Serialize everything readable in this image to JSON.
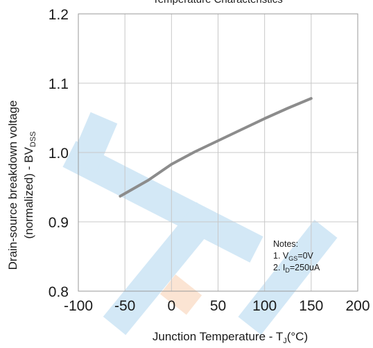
{
  "chart_data": {
    "type": "line",
    "title": "Temperature Characteristics",
    "xlabel": {
      "main": "Junction Temperature - T",
      "sub": "J",
      "suffix": "(°C)"
    },
    "ylabel": {
      "line1": "Drain-source breakdown voltage",
      "line2_main": "(normalized)  -  BV",
      "line2_sub": "DSS"
    },
    "xlim": [
      -100,
      200
    ],
    "ylim": [
      0.8,
      1.2
    ],
    "xticks": [
      "-100",
      "-50",
      "0",
      "50",
      "100",
      "150",
      "200"
    ],
    "yticks": [
      "0.8",
      "0.9",
      "1.0",
      "1.1",
      "1.2"
    ],
    "grid": true,
    "series": [
      {
        "x": [
          -55,
          -25,
          0,
          25,
          50,
          75,
          100,
          125,
          150
        ],
        "y": [
          0.937,
          0.96,
          0.983,
          1.001,
          1.017,
          1.033,
          1.049,
          1.064,
          1.078
        ],
        "color": "#8c8c8c"
      }
    ],
    "notes": {
      "heading": "Notes:",
      "items": [
        {
          "prefix": "1. V",
          "sub": "GS",
          "suffix": "=0V"
        },
        {
          "prefix": "2. I",
          "sub": "D",
          "suffix": "=250uA"
        }
      ]
    }
  },
  "colors": {
    "watermark_blue": "#3a9ad9",
    "watermark_orange": "#f08a3c",
    "grid": "#c8c8c8",
    "frame": "#9a9a9a"
  }
}
